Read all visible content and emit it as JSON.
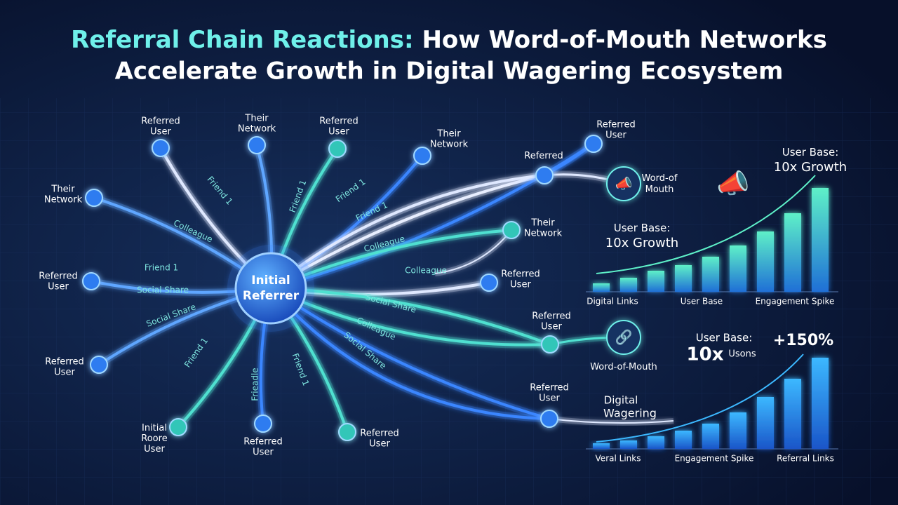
{
  "header": {
    "title_highlight": "Referral Chain Reactions:",
    "title_rest": "How Word-of-Mouth Networks",
    "title_line2": "Accelerate Growth in Digital Wagering Ecosystem"
  },
  "center": {
    "label": [
      "Initial",
      "Referrer"
    ]
  },
  "nodes": [
    {
      "label": [
        "Referred",
        "User"
      ]
    },
    {
      "label": [
        "Their",
        "Network"
      ]
    },
    {
      "label": [
        "Referred",
        "User"
      ]
    },
    {
      "label": [
        "Their",
        "Network"
      ]
    },
    {
      "label": [
        "Referred"
      ]
    },
    {
      "label": [
        "Referred",
        "User"
      ]
    },
    {
      "label": [
        "Their",
        "Network"
      ]
    },
    {
      "label": [
        "Referred",
        "User"
      ]
    },
    {
      "label": [
        "Referred",
        "User"
      ]
    },
    {
      "label": [
        "Referred",
        "User"
      ]
    },
    {
      "label": [
        "Referred",
        "User"
      ]
    },
    {
      "label": [
        "Referred",
        "User"
      ]
    },
    {
      "label": [
        "Initial",
        "Roore",
        "User"
      ]
    },
    {
      "label": [
        "Referred",
        "User"
      ]
    },
    {
      "label": [
        "Referred",
        "User"
      ]
    },
    {
      "label": [
        "Their",
        "Network"
      ]
    }
  ],
  "edge_labels": [
    "Friend 1",
    "Colleague",
    "Friend 1",
    "Social Share",
    "Social Share",
    "Friend 1",
    "Frieadle",
    "Friend 1",
    "Friend 1",
    "Friend 1",
    "Friend 1",
    "Colleague",
    "Colleague",
    "Social Share",
    "Colleague",
    "Social Share"
  ],
  "callouts": [
    {
      "label": [
        "Word-of",
        "Mouth"
      ]
    },
    {
      "label": [
        "Word-of-Mouth"
      ]
    }
  ],
  "charts": [
    {
      "headline": [
        "User Base:",
        "10x Growth"
      ],
      "inner_headline": [
        "User Base:",
        "10x Growth"
      ],
      "values": [
        12,
        20,
        30,
        38,
        50,
        66,
        86,
        112,
        148
      ],
      "axis_labels": [
        "Digital Links",
        "User Base",
        "Engagement Spike"
      ]
    },
    {
      "headline": [
        "User Base:",
        "10x",
        "Usons"
      ],
      "badge": "+150%",
      "inner_headline": [
        "Digital",
        "Wagering"
      ],
      "values": [
        8,
        12,
        18,
        26,
        36,
        52,
        74,
        100,
        130
      ],
      "axis_labels": [
        "Veral Links",
        "Engagement Spike",
        "Referral Links"
      ]
    }
  ]
}
